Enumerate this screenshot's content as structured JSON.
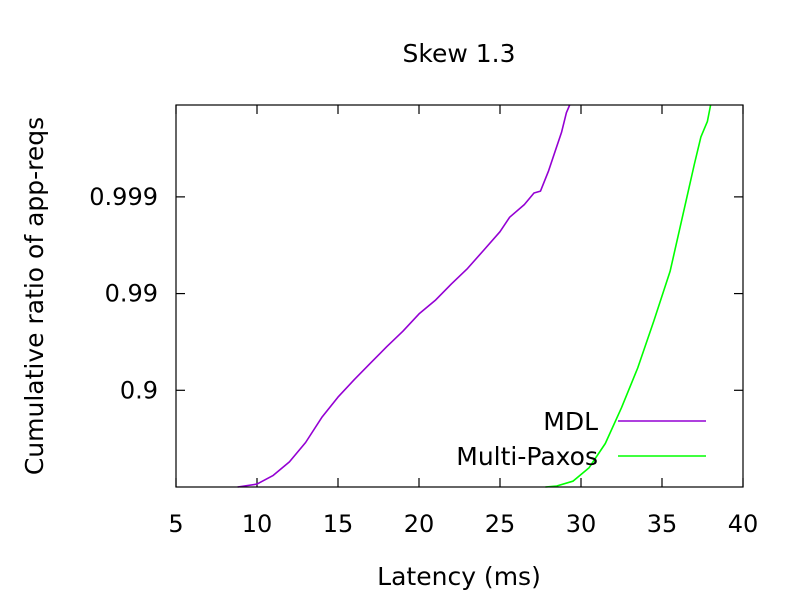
{
  "chart_data": {
    "type": "line",
    "title": "Skew 1.3",
    "xlabel": "Latency (ms)",
    "ylabel": "Cumulative ratio of app-reqs",
    "xlim": [
      5,
      40
    ],
    "x_ticks": [
      "5",
      "10",
      "15",
      "20",
      "25",
      "30",
      "35",
      "40"
    ],
    "y_scale": "log of (1 - cumulative ratio), reversed; each tick adds a nine",
    "y_ticks": [
      {
        "label": "0.9",
        "nines": 1
      },
      {
        "label": "0.99",
        "nines": 2
      },
      {
        "label": "0.999",
        "nines": 3
      }
    ],
    "ylim_nines": [
      0,
      3.95
    ],
    "grid": false,
    "legend_position": "bottom-right",
    "series": [
      {
        "name": "MDL",
        "color": "#9400d3",
        "x": [
          8.8,
          10,
          11,
          12,
          13,
          14,
          15,
          16,
          17,
          18,
          19,
          20,
          21,
          22,
          23,
          24,
          25,
          25.6,
          26.5,
          27.1,
          27.5,
          28.0,
          28.4,
          28.8,
          29.1,
          29.3
        ],
        "y_nines": [
          0.0,
          0.03,
          0.12,
          0.26,
          0.46,
          0.72,
          0.93,
          1.11,
          1.28,
          1.45,
          1.61,
          1.79,
          1.93,
          2.1,
          2.26,
          2.45,
          2.64,
          2.79,
          2.92,
          3.04,
          3.06,
          3.27,
          3.47,
          3.67,
          3.87,
          3.95
        ]
      },
      {
        "name": "Multi-Paxos",
        "color": "#00ff00",
        "x": [
          27.8,
          28.5,
          29.5,
          30.5,
          31.5,
          32.5,
          33.5,
          34.5,
          35.5,
          36.0,
          36.5,
          37.0,
          37.4,
          37.8,
          38.0
        ],
        "y_nines": [
          0.0,
          0.01,
          0.06,
          0.2,
          0.45,
          0.82,
          1.23,
          1.72,
          2.23,
          2.6,
          2.97,
          3.34,
          3.62,
          3.78,
          3.95
        ]
      }
    ]
  }
}
